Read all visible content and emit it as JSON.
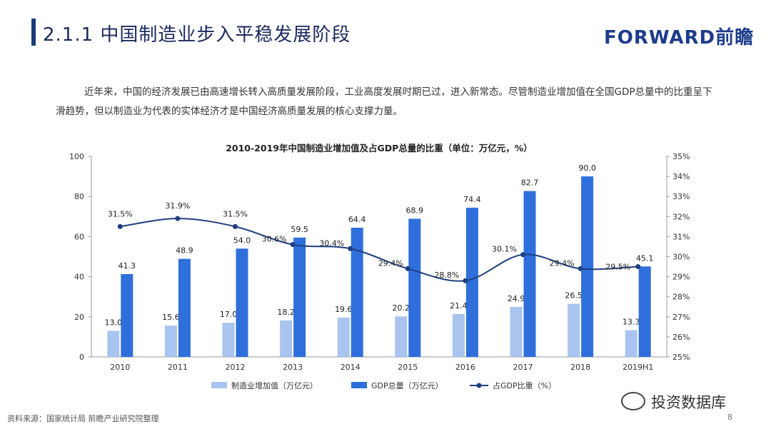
{
  "header": {
    "title": "2.1.1 中国制造业步入平稳发展阶段",
    "brand": "FORWARD前瞻"
  },
  "intro": {
    "paragraph": "近年来，中国的经济发展已由高速增长转入高质量发展阶段，工业高度发展时期已过，进入新常态。尽管制造业增加值在全国GDP总量中的比重呈下滑趋势，但以制造业为代表的实体经济才是中国经济高质量发展的核心支撑力量。"
  },
  "chart_data": {
    "type": "bar",
    "title": "2010-2019年中国制造业增加值及占GDP总量的比重（单位：万亿元，%）",
    "categories": [
      "2010",
      "2011",
      "2012",
      "2013",
      "2014",
      "2015",
      "2016",
      "2017",
      "2018",
      "2019H1"
    ],
    "series": [
      {
        "name": "制造业增加值（万亿元）",
        "type": "bar",
        "axis": "left",
        "color": "#a9c4ef",
        "values": [
          13.0,
          15.6,
          17.0,
          18.2,
          19.6,
          20.2,
          21.4,
          24.9,
          26.5,
          13.3
        ],
        "labels": [
          "13.0",
          "15.6",
          "17.0",
          "18.2",
          "19.6",
          "20.2",
          "21.4",
          "24.9",
          "26.5",
          "13.3"
        ]
      },
      {
        "name": "GDP总量（万亿元）",
        "type": "bar",
        "axis": "left",
        "color": "#2f6fdc",
        "values": [
          41.3,
          48.9,
          54.0,
          59.5,
          64.4,
          68.9,
          74.4,
          82.7,
          90.0,
          45.1
        ],
        "labels": [
          "41.3",
          "48.9",
          "54.0",
          "59.5",
          "64.4",
          "68.9",
          "74.4",
          "82.7",
          "90.0",
          "45.1"
        ]
      },
      {
        "name": "占GDP比重（%）",
        "type": "line",
        "axis": "right",
        "color": "#1f3f7f",
        "values": [
          31.5,
          31.9,
          31.5,
          30.6,
          30.4,
          29.4,
          28.8,
          30.1,
          29.4,
          29.5
        ],
        "labels": [
          "31.5%",
          "31.9%",
          "31.5%",
          "30.6%",
          "30.4%",
          "29.4%",
          "28.8%",
          "30.1%",
          "29.4%",
          "29.5%"
        ]
      }
    ],
    "y_left": {
      "min": 0,
      "max": 100,
      "ticks": [
        "0",
        "20",
        "40",
        "60",
        "80",
        "100"
      ]
    },
    "y_right": {
      "min": 25,
      "max": 35,
      "ticks": [
        "25%",
        "26%",
        "27%",
        "28%",
        "29%",
        "30%",
        "31%",
        "32%",
        "33%",
        "34%",
        "35%"
      ]
    },
    "grid": false,
    "legend_position": "bottom"
  },
  "footer": {
    "source": "资料来源：国家统计局 前瞻产业研究院整理",
    "page": "8",
    "wechat_label": "投资数据库",
    "wechat_icon": "wechat-icon"
  }
}
